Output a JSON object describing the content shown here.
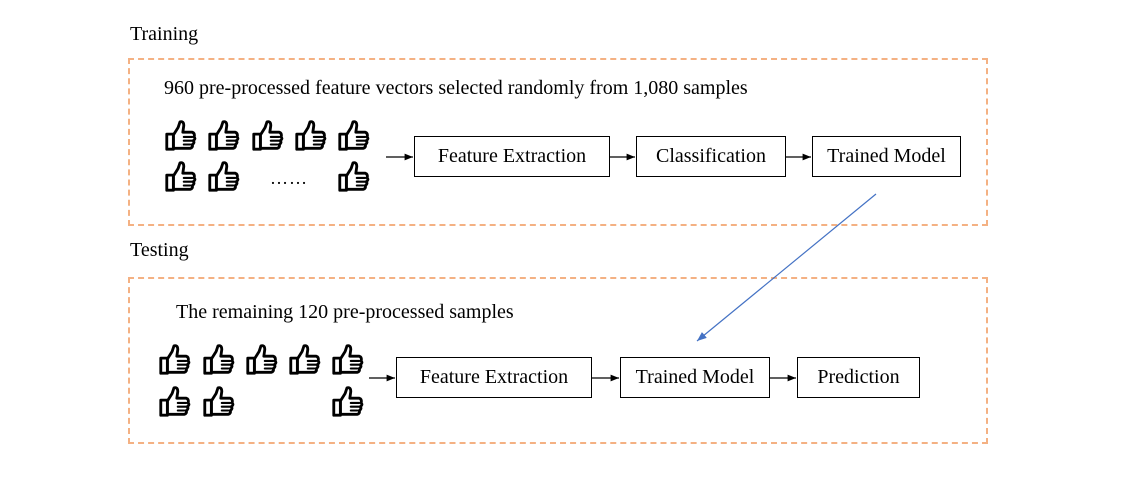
{
  "training": {
    "label": "Training",
    "caption": "960 pre-processed feature vectors selected randomly from 1,080 samples",
    "ellipsis": "……",
    "steps": [
      "Feature Extraction",
      "Classification",
      "Trained Model"
    ]
  },
  "testing": {
    "label": "Testing",
    "caption": "The remaining 120 pre-processed samples",
    "steps": [
      "Feature Extraction",
      "Trained Model",
      "Prediction"
    ]
  },
  "colors": {
    "panel_border": "#f4b183",
    "model_transfer_arrow": "#4472c4"
  },
  "icons": {
    "sample": "thumbs-up-icon"
  }
}
